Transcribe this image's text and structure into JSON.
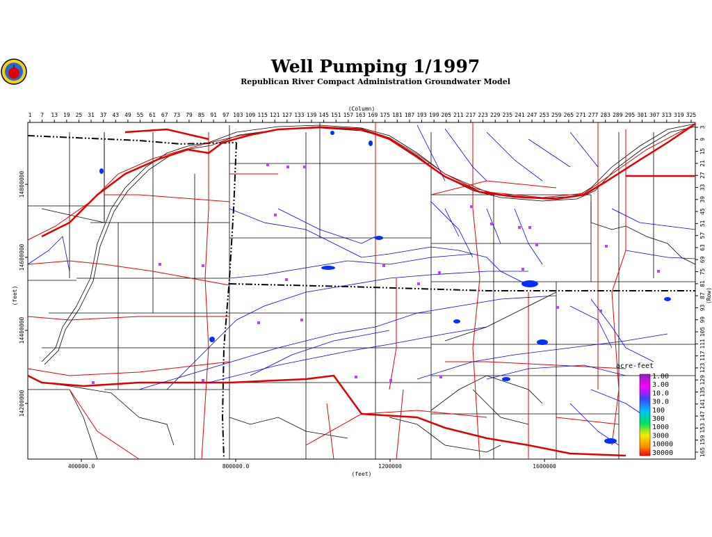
{
  "header": {
    "title": "Well Pumping 1/1997",
    "subtitle": "Republican River Compact Administration Groundwater Model"
  },
  "axes": {
    "column_title": "(Column)",
    "row_title": "(Row)",
    "x_title": "(feet)",
    "y_title": "(feet)",
    "columns": [
      1,
      7,
      13,
      19,
      25,
      31,
      37,
      43,
      49,
      55,
      61,
      67,
      73,
      79,
      85,
      91,
      97,
      103,
      109,
      115,
      121,
      127,
      133,
      139,
      145,
      151,
      157,
      163,
      169,
      175,
      181,
      187,
      193,
      199,
      205,
      211,
      217,
      223,
      229,
      235,
      241,
      247,
      253,
      259,
      265,
      271,
      277,
      283,
      289,
      295,
      301,
      307,
      313,
      319,
      325
    ],
    "rows": [
      3,
      9,
      15,
      21,
      27,
      33,
      39,
      45,
      51,
      57,
      63,
      69,
      75,
      81,
      87,
      93,
      99,
      105,
      111,
      117,
      123,
      129,
      135,
      141,
      147,
      153,
      159,
      165
    ],
    "x_feet": [
      {
        "value": 400000,
        "label": "400000.0"
      },
      {
        "value": 800000,
        "label": "800000.0"
      },
      1200000,
      1600000
    ],
    "y_feet": [
      14800000,
      14600000,
      14400000,
      14200000
    ]
  },
  "legend": {
    "title": "acre-feet",
    "labels": [
      "1.00",
      "3.00",
      "10.0",
      "30.0",
      "100",
      "300",
      "1000",
      "3000",
      "10000",
      "30000"
    ]
  }
}
